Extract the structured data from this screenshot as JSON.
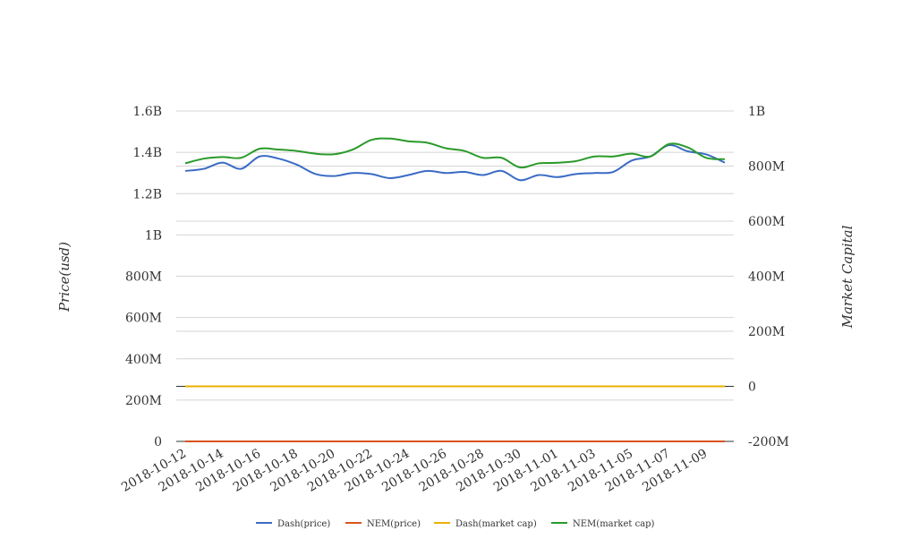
{
  "chart_data": {
    "type": "line",
    "title": "",
    "ylabel": "Price(usd)",
    "y2label": "Market Capital",
    "categories": [
      "2018-10-12",
      "2018-10-13",
      "2018-10-14",
      "2018-10-15",
      "2018-10-16",
      "2018-10-17",
      "2018-10-18",
      "2018-10-19",
      "2018-10-20",
      "2018-10-21",
      "2018-10-22",
      "2018-10-23",
      "2018-10-24",
      "2018-10-25",
      "2018-10-26",
      "2018-10-27",
      "2018-10-28",
      "2018-10-29",
      "2018-10-30",
      "2018-10-31",
      "2018-11-01",
      "2018-11-02",
      "2018-11-03",
      "2018-11-04",
      "2018-11-05",
      "2018-11-06",
      "2018-11-07",
      "2018-11-08",
      "2018-11-09",
      "2018-11-10"
    ],
    "xticks": [
      "2018-10-12",
      "2018-10-14",
      "2018-10-16",
      "2018-10-18",
      "2018-10-20",
      "2018-10-22",
      "2018-10-24",
      "2018-10-26",
      "2018-10-28",
      "2018-10-30",
      "2018-11-01",
      "2018-11-03",
      "2018-11-05",
      "2018-11-07",
      "2018-11-09"
    ],
    "ylim": [
      0,
      1600000000
    ],
    "yticks": [
      "0",
      "200M",
      "400M",
      "600M",
      "800M",
      "1B",
      "1.2B",
      "1.4B",
      "1.6B"
    ],
    "y2lim": [
      -200000000,
      1000000000
    ],
    "y2ticks": [
      "-200M",
      "0",
      "200M",
      "400M",
      "600M",
      "800M",
      "1B"
    ],
    "grid": true,
    "legend_position": "bottom",
    "series": [
      {
        "name": "Dash(price)",
        "axis": "left",
        "color": "#3a6bc4",
        "values": [
          1310000000.0,
          1320000000.0,
          1350000000.0,
          1320000000.0,
          1380000000.0,
          1370000000.0,
          1340000000.0,
          1295000000.0,
          1285000000.0,
          1300000000.0,
          1295000000.0,
          1275000000.0,
          1290000000.0,
          1310000000.0,
          1300000000.0,
          1305000000.0,
          1290000000.0,
          1310000000.0,
          1265000000.0,
          1290000000.0,
          1280000000.0,
          1295000000.0,
          1300000000.0,
          1305000000.0,
          1360000000.0,
          1380000000.0,
          1435000000.0,
          1405000000.0,
          1390000000.0,
          1350000000.0
        ]
      },
      {
        "name": "NEM(price)",
        "axis": "left",
        "color": "#d9531e",
        "values": [
          0.09,
          0.09,
          0.09,
          0.09,
          0.09,
          0.09,
          0.09,
          0.09,
          0.09,
          0.09,
          0.09,
          0.09,
          0.09,
          0.09,
          0.09,
          0.09,
          0.09,
          0.09,
          0.09,
          0.09,
          0.09,
          0.09,
          0.09,
          0.09,
          0.09,
          0.09,
          0.09,
          0.09,
          0.09,
          0.09
        ]
      },
      {
        "name": "Dash(market cap)",
        "axis": "right",
        "color": "#e8b100",
        "values": [
          0,
          0,
          0,
          0,
          0,
          0,
          0,
          0,
          0,
          0,
          0,
          0,
          0,
          0,
          0,
          0,
          0,
          0,
          0,
          0,
          0,
          0,
          0,
          0,
          0,
          0,
          0,
          0,
          0,
          0
        ]
      },
      {
        "name": "NEM(market cap)",
        "axis": "right",
        "color": "#2a9a2a",
        "values": [
          810000000,
          827000000,
          833000000,
          830000000,
          863000000,
          860000000,
          855000000,
          845000000,
          843000000,
          860000000,
          895000000,
          900000000,
          890000000,
          885000000,
          865000000,
          855000000,
          830000000,
          830000000,
          795000000,
          810000000,
          812000000,
          818000000,
          835000000,
          835000000,
          845000000,
          835000000,
          880000000,
          868000000,
          830000000,
          825000000
        ]
      }
    ]
  }
}
